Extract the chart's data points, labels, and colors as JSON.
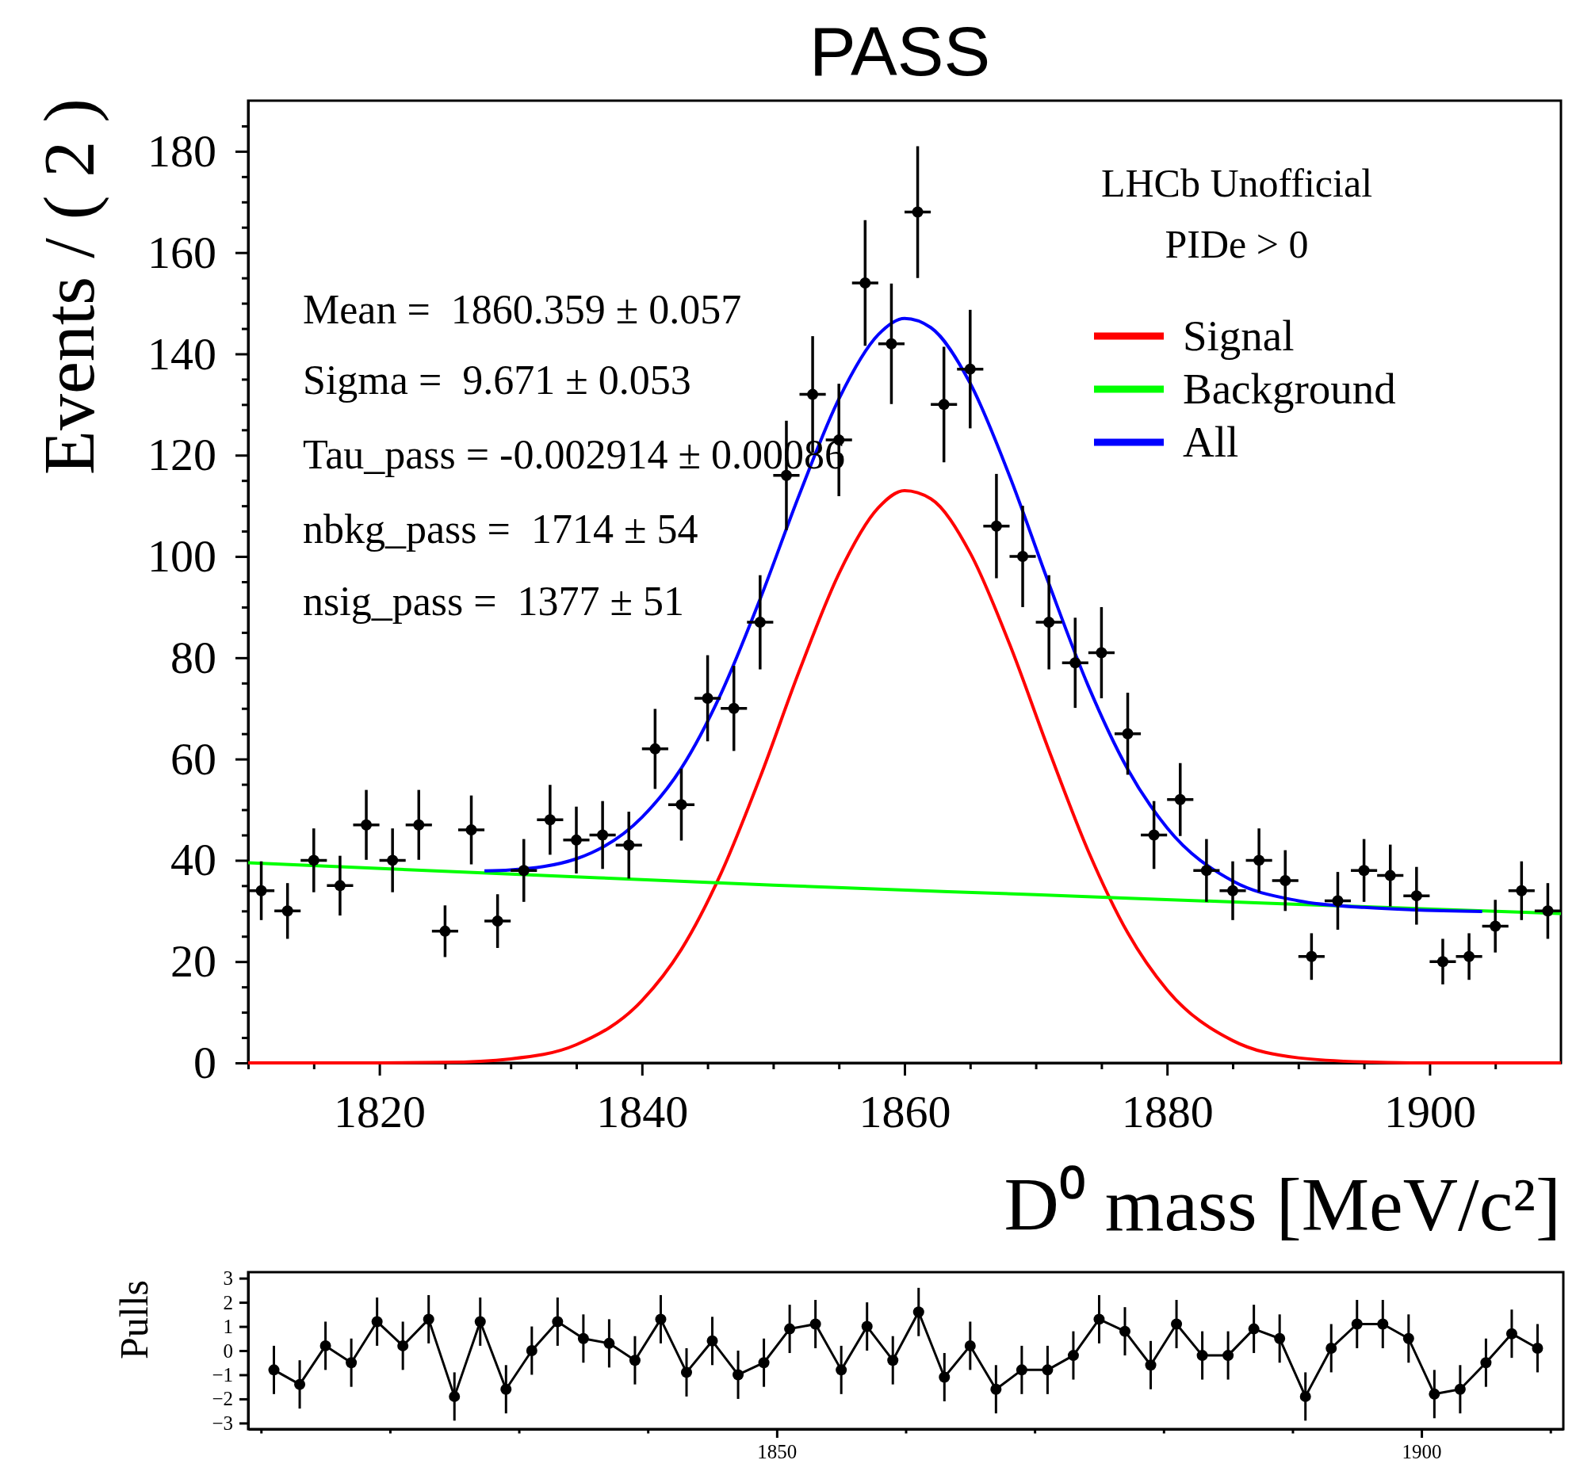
{
  "chart_data": [
    {
      "type": "scatter",
      "title": "PASS",
      "xlabel": "D⁰ mass [MeV/c²]",
      "ylabel": "Events / ( 2 )",
      "xlim": [
        1810,
        1910
      ],
      "ylim": [
        0,
        190
      ],
      "xticks": [
        {
          "value": 1810,
          "label": null
        },
        {
          "value": 1815,
          "label": null
        },
        1820,
        {
          "value": 1825,
          "label": null
        },
        {
          "value": 1830,
          "label": null
        },
        {
          "value": 1835,
          "label": null
        },
        1840,
        {
          "value": 1845,
          "label": null
        },
        {
          "value": 1850,
          "label": null
        },
        {
          "value": 1855,
          "label": null
        },
        1860,
        {
          "value": 1865,
          "label": null
        },
        {
          "value": 1870,
          "label": null
        },
        {
          "value": 1875,
          "label": null
        },
        1880,
        {
          "value": 1885,
          "label": null
        },
        {
          "value": 1890,
          "label": null
        },
        {
          "value": 1895,
          "label": null
        },
        1900,
        {
          "value": 1905,
          "label": null
        }
      ],
      "yticks": [
        0,
        {
          "value": 5,
          "label": null
        },
        {
          "value": 10,
          "label": null
        },
        {
          "value": 15,
          "label": null
        },
        20,
        {
          "value": 25,
          "label": null
        },
        {
          "value": 30,
          "label": null
        },
        {
          "value": 35,
          "label": null
        },
        40,
        {
          "value": 45,
          "label": null
        },
        {
          "value": 50,
          "label": null
        },
        {
          "value": 55,
          "label": null
        },
        60,
        {
          "value": 65,
          "label": null
        },
        {
          "value": 70,
          "label": null
        },
        {
          "value": 75,
          "label": null
        },
        80,
        {
          "value": 85,
          "label": null
        },
        {
          "value": 90,
          "label": null
        },
        {
          "value": 95,
          "label": null
        },
        100,
        {
          "value": 105,
          "label": null
        },
        {
          "value": 110,
          "label": null
        },
        {
          "value": 115,
          "label": null
        },
        120,
        {
          "value": 125,
          "label": null
        },
        {
          "value": 130,
          "label": null
        },
        {
          "value": 135,
          "label": null
        },
        140,
        {
          "value": 145,
          "label": null
        },
        {
          "value": 150,
          "label": null
        },
        {
          "value": 155,
          "label": null
        },
        160,
        {
          "value": 165,
          "label": null
        },
        {
          "value": 170,
          "label": null
        },
        {
          "value": 175,
          "label": null
        },
        180,
        {
          "value": 185,
          "label": null
        }
      ],
      "legend": "top right",
      "line_style": "solid",
      "annotations": [
        "Mean =  1860.359 ± 0.057",
        "Sigma =  9.671 ± 0.053",
        "Tau_pass = -0.002914 ± 0.00086",
        "nbkg_pass =  1714 ± 54",
        "nsig_pass =  1377 ± 51",
        "LHCb Unofficial",
        "PIDe > 0"
      ],
      "series": [
        {
          "type": "scatter",
          "marker": "circle",
          "color": "#000000",
          "x": [
            1811,
            1813,
            1815,
            1817,
            1819,
            1821,
            1823,
            1825,
            1827,
            1829,
            1831,
            1833,
            1835,
            1837,
            1839,
            1841,
            1843,
            1845,
            1847,
            1849,
            1851,
            1853,
            1855,
            1857,
            1859,
            1861,
            1863,
            1865,
            1867,
            1869,
            1871,
            1873,
            1875,
            1877,
            1879,
            1881,
            1883,
            1885,
            1887,
            1889,
            1891,
            1893,
            1895,
            1897,
            1899,
            1901,
            1903,
            1905,
            1907,
            1909
          ],
          "values": [
            34,
            30,
            40,
            35,
            47,
            40,
            47,
            26,
            46,
            28,
            38,
            48,
            44,
            45,
            43,
            62,
            51,
            72,
            70,
            87,
            116,
            132,
            123,
            154,
            142,
            168,
            130,
            137,
            106,
            100,
            87,
            79,
            81,
            65,
            45,
            52,
            38,
            34,
            40,
            36,
            21,
            32,
            38,
            37,
            33,
            20,
            21,
            27,
            34,
            30
          ],
          "errors": [
            5.8,
            5.5,
            6.3,
            5.9,
            6.9,
            6.3,
            6.9,
            5.1,
            6.8,
            5.3,
            6.2,
            6.9,
            6.6,
            6.7,
            6.6,
            7.9,
            7.1,
            8.5,
            8.4,
            9.3,
            10.8,
            11.5,
            11.1,
            12.4,
            11.9,
            13,
            11.4,
            11.7,
            10.3,
            10,
            9.3,
            8.9,
            9,
            8.1,
            6.7,
            7.2,
            6.2,
            5.8,
            6.3,
            6,
            4.6,
            5.7,
            6.2,
            6.1,
            5.7,
            4.5,
            4.6,
            5.2,
            5.8,
            5.5
          ],
          "xerrors": [
            1,
            1,
            1,
            1,
            1,
            1,
            1,
            1,
            1,
            1,
            1,
            1,
            1,
            1,
            1,
            1,
            1,
            1,
            1,
            1,
            1,
            1,
            1,
            1,
            1,
            1,
            1,
            1,
            1,
            1,
            1,
            1,
            1,
            1,
            1,
            1,
            1,
            1,
            1,
            1,
            1,
            1,
            1,
            1,
            1,
            1,
            1,
            1,
            1,
            1
          ]
        },
        {
          "type": "line",
          "name": "Signal",
          "color": "#ff0000",
          "x": [
            1810,
            1815,
            1820,
            1825,
            1830,
            1835,
            1840,
            1843,
            1846,
            1849,
            1852,
            1855,
            1858,
            1860,
            1862,
            1865,
            1868,
            1871,
            1874,
            1877,
            1880,
            1885,
            1890,
            1895,
            1900,
            1910
          ],
          "values": [
            0,
            0,
            0,
            0.1,
            0.8,
            3.6,
            12.3,
            22.4,
            37.3,
            56.4,
            77.5,
            96.6,
            109.6,
            113,
            111.4,
            100.7,
            82.7,
            61.7,
            41.8,
            25.7,
            14.4,
            4.4,
            1,
            0.2,
            0,
            0
          ]
        },
        {
          "type": "line",
          "name": "Background",
          "color": "#00ff00",
          "x": [
            1810,
            1830,
            1850,
            1870,
            1890,
            1910
          ],
          "values": [
            39.5,
            37.3,
            35.1,
            33.2,
            31.3,
            29.5
          ]
        },
        {
          "type": "line",
          "name": "All",
          "color": "#0000ff",
          "x": [
            1828,
            1830,
            1835,
            1840,
            1843,
            1846,
            1849,
            1852,
            1855,
            1858,
            1860,
            1862,
            1865,
            1868,
            1871,
            1874,
            1877,
            1880,
            1885,
            1890,
            1895,
            1904
          ],
          "values": [
            37.9,
            38.1,
            40.3,
            48.5,
            58.2,
            72.8,
            91.6,
            112.3,
            131.1,
            143.8,
            147,
            145.2,
            134.2,
            115.9,
            94.6,
            74.4,
            58,
            46.4,
            35.9,
            32,
            30.7,
            29.9
          ]
        }
      ]
    },
    {
      "type": "line",
      "ylabel": "Pulls",
      "xlim": [
        1809,
        1911
      ],
      "ylim": [
        -3.25,
        3.25
      ],
      "marker": "circle",
      "line_style": "solid",
      "xticks": [
        {
          "value": 1810,
          "label": null
        },
        {
          "value": 1820,
          "label": null
        },
        {
          "value": 1830,
          "label": null
        },
        {
          "value": 1840,
          "label": null
        },
        1850,
        {
          "value": 1860,
          "label": null
        },
        {
          "value": 1870,
          "label": null
        },
        {
          "value": 1880,
          "label": null
        },
        {
          "value": 1890,
          "label": null
        },
        1900,
        {
          "value": 1910,
          "label": null
        }
      ],
      "yticks": [
        {
          "value": -3,
          "label": "−3"
        },
        {
          "value": -2,
          "label": "−2"
        },
        {
          "value": -1,
          "label": "−1"
        },
        0,
        1,
        2,
        3
      ],
      "series": [
        {
          "color": "#000000",
          "x": [
            1811,
            1813,
            1815,
            1817,
            1819,
            1821,
            1823,
            1825,
            1827,
            1829,
            1831,
            1833,
            1835,
            1837,
            1839,
            1841,
            1843,
            1845,
            1847,
            1849,
            1851,
            1853,
            1855,
            1857,
            1859,
            1861,
            1863,
            1865,
            1867,
            1869,
            1871,
            1873,
            1875,
            1877,
            1879,
            1881,
            1883,
            1885,
            1887,
            1889,
            1891,
            1893,
            1895,
            1897,
            1899,
            1901,
            1903,
            1905,
            1907,
            1909
          ],
          "values": [
            -0.8,
            -1.4,
            0.2,
            -0.5,
            1.2,
            0.2,
            1.3,
            -1.9,
            1.2,
            -1.6,
            0,
            1.2,
            0.5,
            0.3,
            -0.4,
            1.3,
            -0.9,
            0.4,
            -1,
            -0.5,
            0.9,
            1.1,
            -0.8,
            1,
            -0.4,
            1.6,
            -1.1,
            0.2,
            -1.6,
            -0.8,
            -0.8,
            -0.2,
            1.3,
            0.8,
            -0.6,
            1.1,
            -0.2,
            -0.2,
            0.9,
            0.5,
            -1.9,
            0.1,
            1.1,
            1.1,
            0.5,
            -1.8,
            -1.6,
            -0.5,
            0.7,
            0.1
          ],
          "errors": [
            1,
            1,
            1,
            1,
            1,
            1,
            1,
            1,
            1,
            1,
            1,
            1,
            1,
            1,
            1,
            1,
            1,
            1,
            1,
            1,
            1,
            1,
            1,
            1,
            1,
            1,
            1,
            1,
            1,
            1,
            1,
            1,
            1,
            1,
            1,
            1,
            1,
            1,
            1,
            1,
            1,
            1,
            1,
            1,
            1,
            1,
            1,
            1,
            1,
            1
          ]
        }
      ]
    }
  ]
}
